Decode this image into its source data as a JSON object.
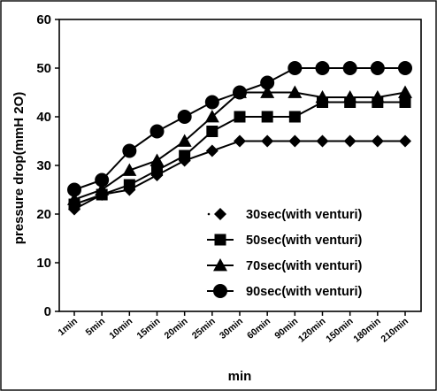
{
  "chart_data": {
    "type": "line",
    "title": "",
    "xlabel": "min",
    "ylabel": "pressure drop(mmH 2O)",
    "categories": [
      "1min",
      "5min",
      "10min",
      "15min",
      "20min",
      "25min",
      "30min",
      "60min",
      "90min",
      "120min",
      "150min",
      "180min",
      "210min"
    ],
    "ylim": [
      0,
      60
    ],
    "yticks": [
      0,
      10,
      20,
      30,
      40,
      50,
      60
    ],
    "grid": false,
    "legend_position": "bottom-right",
    "series": [
      {
        "name": "30sec(with venturi)",
        "marker": "diamond",
        "color": "#000000",
        "values": [
          21,
          24,
          25,
          28,
          31,
          33,
          35,
          35,
          35,
          35,
          35,
          35,
          35
        ]
      },
      {
        "name": "50sec(with venturi)",
        "marker": "square",
        "color": "#000000",
        "values": [
          22,
          24,
          26,
          29,
          32,
          37,
          40,
          40,
          40,
          43,
          43,
          43,
          43
        ]
      },
      {
        "name": "70sec(with venturi)",
        "marker": "triangle",
        "color": "#000000",
        "values": [
          23,
          25,
          29,
          31,
          35,
          40,
          45,
          45,
          45,
          44,
          44,
          44,
          45
        ]
      },
      {
        "name": "90sec(with venturi)",
        "marker": "circle",
        "color": "#000000",
        "values": [
          25,
          27,
          33,
          37,
          40,
          43,
          45,
          47,
          50,
          50,
          50,
          50,
          50
        ]
      }
    ]
  }
}
